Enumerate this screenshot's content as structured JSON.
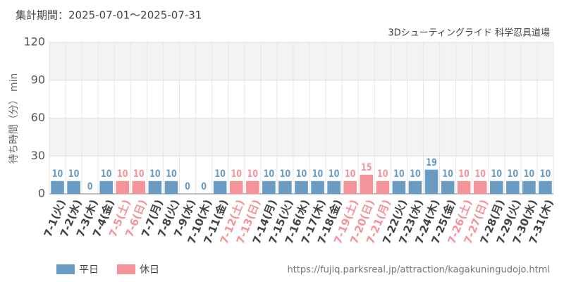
{
  "chart_data": {
    "type": "bar",
    "title": "集計期間：2025-07-01～2025-07-31",
    "subtitle": "3Dシューティングライド 科学忍具道場",
    "y_label": "待ち時間（分） min",
    "source": "https://fujiq.parksreal.jp/attraction/kagakuningudojo.html",
    "categories": [
      "7-1(火)",
      "7-2(水)",
      "7-3(木)",
      "7-4(金)",
      "7-5(土)",
      "7-6(日)",
      "7-7(月)",
      "7-8(火)",
      "7-9(水)",
      "7-10(木)",
      "7-11(金)",
      "7-12(土)",
      "7-13(日)",
      "7-14(月)",
      "7-15(火)",
      "7-16(水)",
      "7-17(木)",
      "7-18(金)",
      "7-19(土)",
      "7-20(日)",
      "7-21(月)",
      "7-22(火)",
      "7-23(水)",
      "7-24(木)",
      "7-25(金)",
      "7-26(土)",
      "7-27(日)",
      "7-28(月)",
      "7-29(火)",
      "7-30(水)",
      "7-31(木)"
    ],
    "series": [
      {
        "name": "平日",
        "color": "#6a9bc3",
        "label_color": "#444444",
        "values": [
          10,
          10,
          0,
          10,
          null,
          null,
          10,
          10,
          0,
          0,
          10,
          null,
          null,
          10,
          10,
          10,
          10,
          10,
          null,
          null,
          null,
          10,
          10,
          19,
          10,
          null,
          null,
          10,
          10,
          10,
          10
        ]
      },
      {
        "name": "休日",
        "color": "#f4939a",
        "label_color": "#f4939a",
        "values": [
          null,
          null,
          null,
          null,
          10,
          10,
          null,
          null,
          null,
          null,
          null,
          10,
          10,
          null,
          null,
          null,
          null,
          null,
          10,
          15,
          10,
          null,
          null,
          null,
          null,
          10,
          10,
          null,
          null,
          null,
          null
        ]
      }
    ],
    "ylim": [
      0,
      120
    ],
    "yticks": [
      0,
      30,
      60,
      90,
      120
    ],
    "grid": true
  }
}
